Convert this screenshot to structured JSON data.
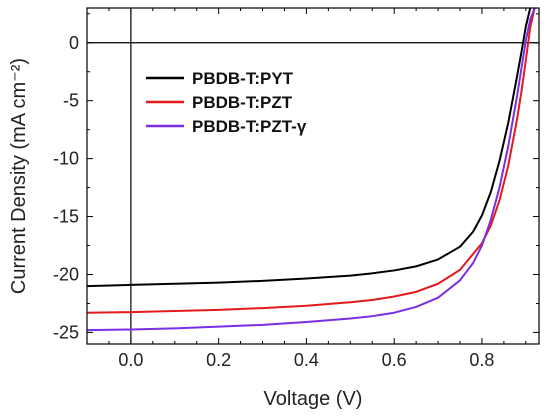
{
  "chart_data": {
    "type": "line",
    "xlabel": "Voltage (V)",
    "ylabel": "Current Density (mA cm⁻²)",
    "xlim": [
      -0.1,
      0.93
    ],
    "ylim": [
      -26,
      3
    ],
    "xticks": [
      0.0,
      0.2,
      0.4,
      0.6,
      0.8
    ],
    "xtick_labels": [
      "0.0",
      "0.2",
      "0.4",
      "0.6",
      "0.8"
    ],
    "yticks": [
      0,
      -5,
      -10,
      -15,
      -20,
      -25
    ],
    "ytick_labels": [
      "0",
      "-5",
      "-10",
      "-15",
      "-20",
      "-25"
    ],
    "reference_lines": {
      "x": 0,
      "y": 0
    },
    "legend_position": "top-left",
    "grid": false,
    "series": [
      {
        "name": "PBDB-T:PYT",
        "color": "#000000",
        "x": [
          -0.1,
          0.0,
          0.1,
          0.2,
          0.3,
          0.4,
          0.5,
          0.55,
          0.6,
          0.65,
          0.7,
          0.75,
          0.78,
          0.8,
          0.82,
          0.84,
          0.86,
          0.88,
          0.89,
          0.9,
          0.91
        ],
        "y": [
          -21.0,
          -20.9,
          -20.8,
          -20.7,
          -20.55,
          -20.35,
          -20.1,
          -19.9,
          -19.65,
          -19.3,
          -18.7,
          -17.6,
          -16.3,
          -14.9,
          -12.9,
          -10.2,
          -6.9,
          -2.9,
          -0.8,
          1.4,
          3.0
        ]
      },
      {
        "name": "PBDB-T:PZT",
        "color": "#e31a1c",
        "x": [
          -0.1,
          0.0,
          0.1,
          0.2,
          0.3,
          0.4,
          0.5,
          0.55,
          0.6,
          0.65,
          0.7,
          0.75,
          0.8,
          0.82,
          0.84,
          0.86,
          0.88,
          0.89,
          0.9,
          0.91,
          0.92
        ],
        "y": [
          -23.3,
          -23.25,
          -23.15,
          -23.05,
          -22.9,
          -22.7,
          -22.4,
          -22.2,
          -21.9,
          -21.5,
          -20.8,
          -19.6,
          -17.3,
          -15.8,
          -13.6,
          -10.6,
          -6.6,
          -4.2,
          -1.5,
          1.3,
          3.0
        ]
      },
      {
        "name": "PBDB-T:PZT-γ",
        "color": "#7b2fe3",
        "x": [
          -0.1,
          0.0,
          0.1,
          0.2,
          0.3,
          0.4,
          0.5,
          0.55,
          0.6,
          0.65,
          0.7,
          0.75,
          0.78,
          0.8,
          0.82,
          0.84,
          0.86,
          0.88,
          0.9,
          0.91,
          0.92
        ],
        "y": [
          -24.8,
          -24.75,
          -24.65,
          -24.5,
          -24.35,
          -24.1,
          -23.8,
          -23.6,
          -23.3,
          -22.8,
          -22.0,
          -20.5,
          -19.0,
          -17.5,
          -15.3,
          -12.5,
          -8.9,
          -4.6,
          0.2,
          2.0,
          3.0
        ]
      }
    ]
  }
}
